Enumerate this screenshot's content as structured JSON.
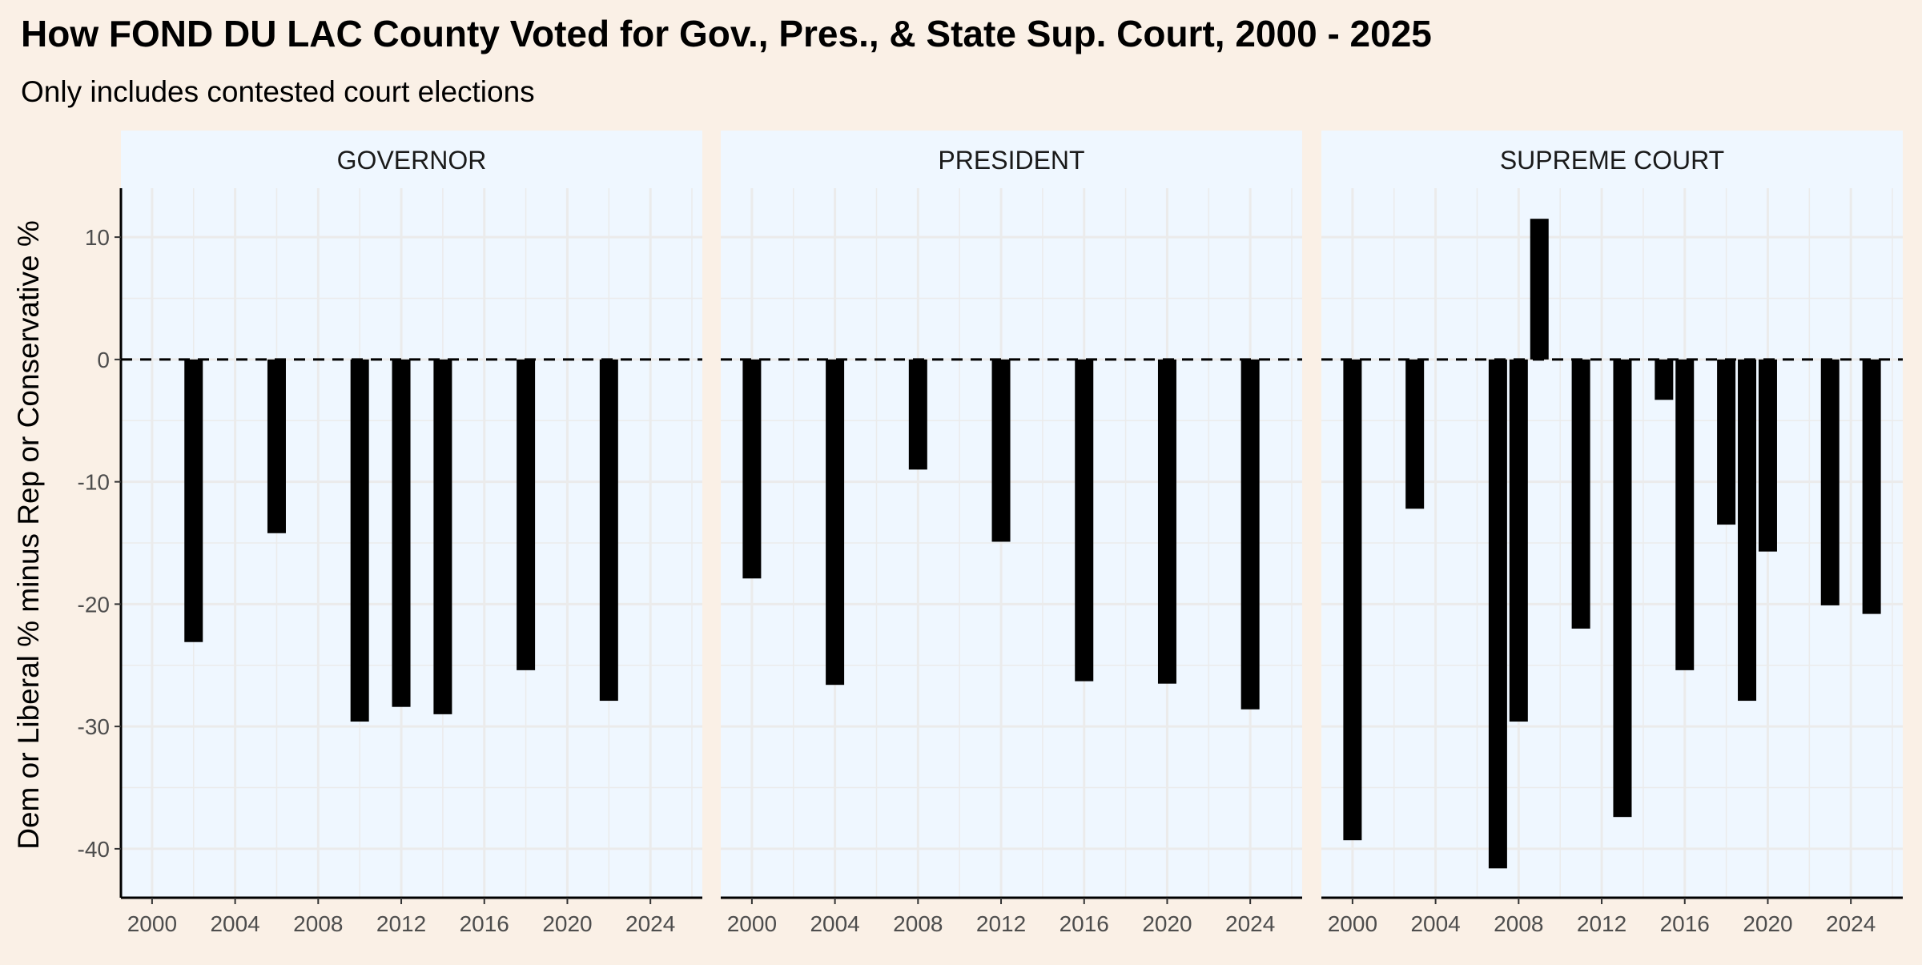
{
  "chart_data": {
    "type": "bar",
    "title": "How FOND DU LAC County Voted for Gov., Pres., & State Sup. Court, 2000 - 2025",
    "subtitle": "Only includes contested court elections",
    "ylabel": "Dem or Liberal % minus Rep or Conservative %",
    "xlabel": "",
    "xlim": [
      1998.5,
      2026.5
    ],
    "ylim": [
      -44,
      14
    ],
    "x_ticks": [
      2000,
      2004,
      2008,
      2012,
      2016,
      2020,
      2024
    ],
    "y_ticks": [
      10,
      0,
      -10,
      -20,
      -30,
      -40
    ],
    "reference_line": {
      "y": 0,
      "style": "dashed"
    },
    "grid": true,
    "colors": {
      "background": "#faf0e6",
      "panel": "#eff7ff",
      "strip": "#eff7ff",
      "bar": "#000000",
      "grid": "#ebebeb",
      "text": "#000000",
      "tick_text": "#4d4d4d"
    },
    "panels": [
      {
        "name": "GOVERNOR",
        "points": [
          {
            "x": 2002,
            "y": -23.1
          },
          {
            "x": 2006,
            "y": -14.2
          },
          {
            "x": 2010,
            "y": -29.6
          },
          {
            "x": 2012,
            "y": -28.4
          },
          {
            "x": 2014,
            "y": -29.0
          },
          {
            "x": 2018,
            "y": -25.4
          },
          {
            "x": 2022,
            "y": -27.9
          }
        ]
      },
      {
        "name": "PRESIDENT",
        "points": [
          {
            "x": 2000,
            "y": -17.9
          },
          {
            "x": 2004,
            "y": -26.6
          },
          {
            "x": 2008,
            "y": -9.0
          },
          {
            "x": 2012,
            "y": -14.9
          },
          {
            "x": 2016,
            "y": -26.3
          },
          {
            "x": 2020,
            "y": -26.5
          },
          {
            "x": 2024,
            "y": -28.6
          }
        ]
      },
      {
        "name": "SUPREME COURT",
        "points": [
          {
            "x": 2000,
            "y": -39.3
          },
          {
            "x": 2003,
            "y": -12.2
          },
          {
            "x": 2007,
            "y": -41.6
          },
          {
            "x": 2008,
            "y": -29.6
          },
          {
            "x": 2009,
            "y": 11.5
          },
          {
            "x": 2011,
            "y": -22.0
          },
          {
            "x": 2013,
            "y": -37.4
          },
          {
            "x": 2015,
            "y": -3.3
          },
          {
            "x": 2016,
            "y": -25.4
          },
          {
            "x": 2018,
            "y": -13.5
          },
          {
            "x": 2019,
            "y": -27.9
          },
          {
            "x": 2020,
            "y": -15.7
          },
          {
            "x": 2023,
            "y": -20.1
          },
          {
            "x": 2025,
            "y": -20.8
          }
        ]
      }
    ]
  }
}
